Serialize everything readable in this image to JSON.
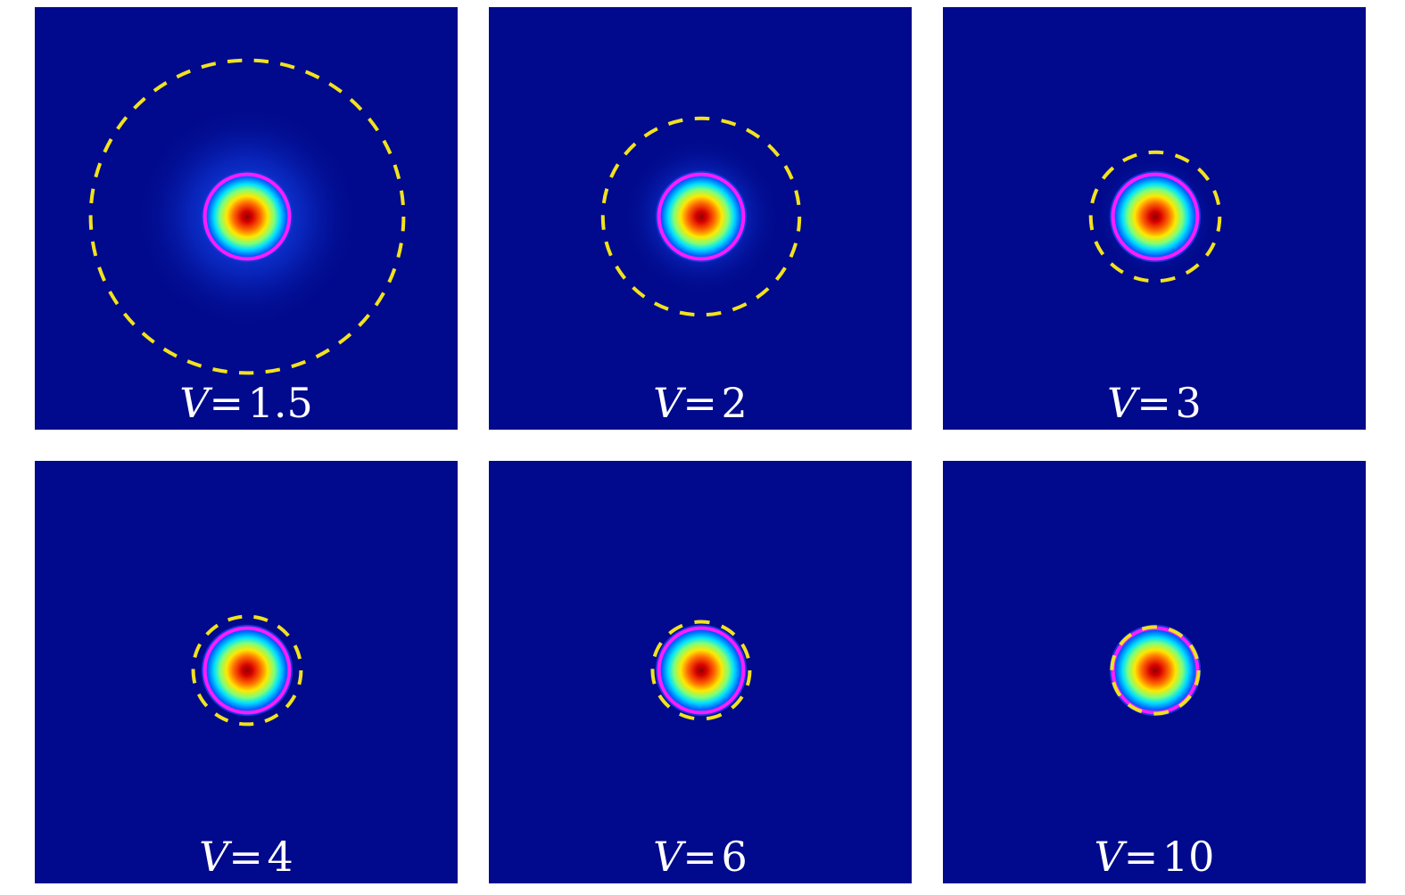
{
  "colors": {
    "background": "#010a8c",
    "core_circle": "#ff1cff",
    "cladding_circle": "#f2e21e",
    "label_text": "#ffffff"
  },
  "panels": [
    {
      "variable": "V",
      "equals": "=",
      "value": "1.5",
      "core_radius": 0.2,
      "cladding_radius": 0.74,
      "halo_radius": 0.54
    },
    {
      "variable": "V",
      "equals": "=",
      "value": "2",
      "core_radius": 0.2,
      "cladding_radius": 0.465,
      "halo_radius": 0.38
    },
    {
      "variable": "V",
      "equals": "=",
      "value": "3",
      "core_radius": 0.2,
      "cladding_radius": 0.305,
      "halo_radius": 0.28
    },
    {
      "variable": "V",
      "equals": "=",
      "value": "4",
      "core_radius": 0.2,
      "cladding_radius": 0.255,
      "halo_radius": 0.24
    },
    {
      "variable": "V",
      "equals": "=",
      "value": "6",
      "core_radius": 0.2,
      "cladding_radius": 0.23,
      "halo_radius": 0.22
    },
    {
      "variable": "V",
      "equals": "=",
      "value": "10",
      "core_radius": 0.2,
      "cladding_radius": 0.205,
      "halo_radius": 0.2
    }
  ]
}
